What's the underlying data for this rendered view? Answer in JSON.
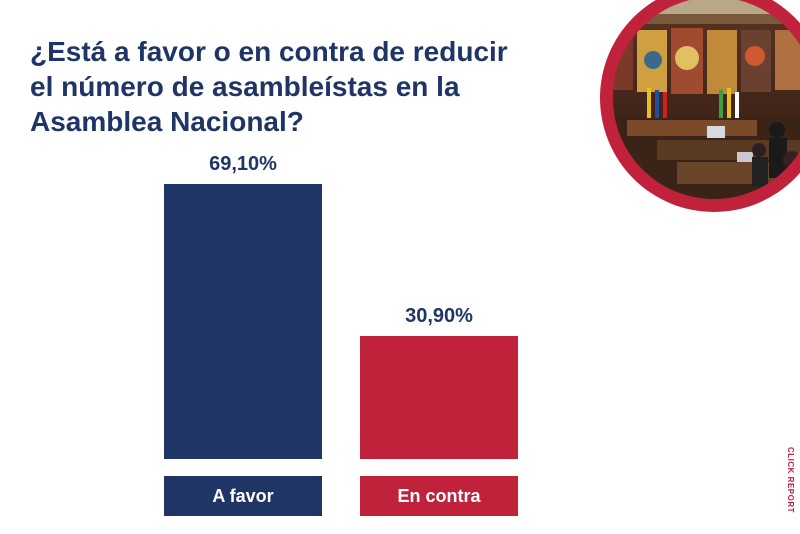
{
  "title_lines": [
    "¿Está a favor o en contra de reducir",
    "el número de asambleístas en la",
    "Asamblea Nacional?"
  ],
  "chart_data": {
    "type": "bar",
    "title": "¿Está a favor o en contra de reducir el número de asambleístas en la Asamblea Nacional?",
    "categories": [
      "A favor",
      "En contra"
    ],
    "values": [
      69.1,
      30.9
    ],
    "value_labels": [
      "69,10%",
      "30,90%"
    ],
    "colors": [
      "#1f3566",
      "#c0223b"
    ],
    "ylim": [
      0,
      69.1
    ],
    "grid": false
  },
  "photo": {
    "icon": "assembly-chamber-photo",
    "ring_color": "#c0223b"
  },
  "credit": "CLICK REPORT"
}
